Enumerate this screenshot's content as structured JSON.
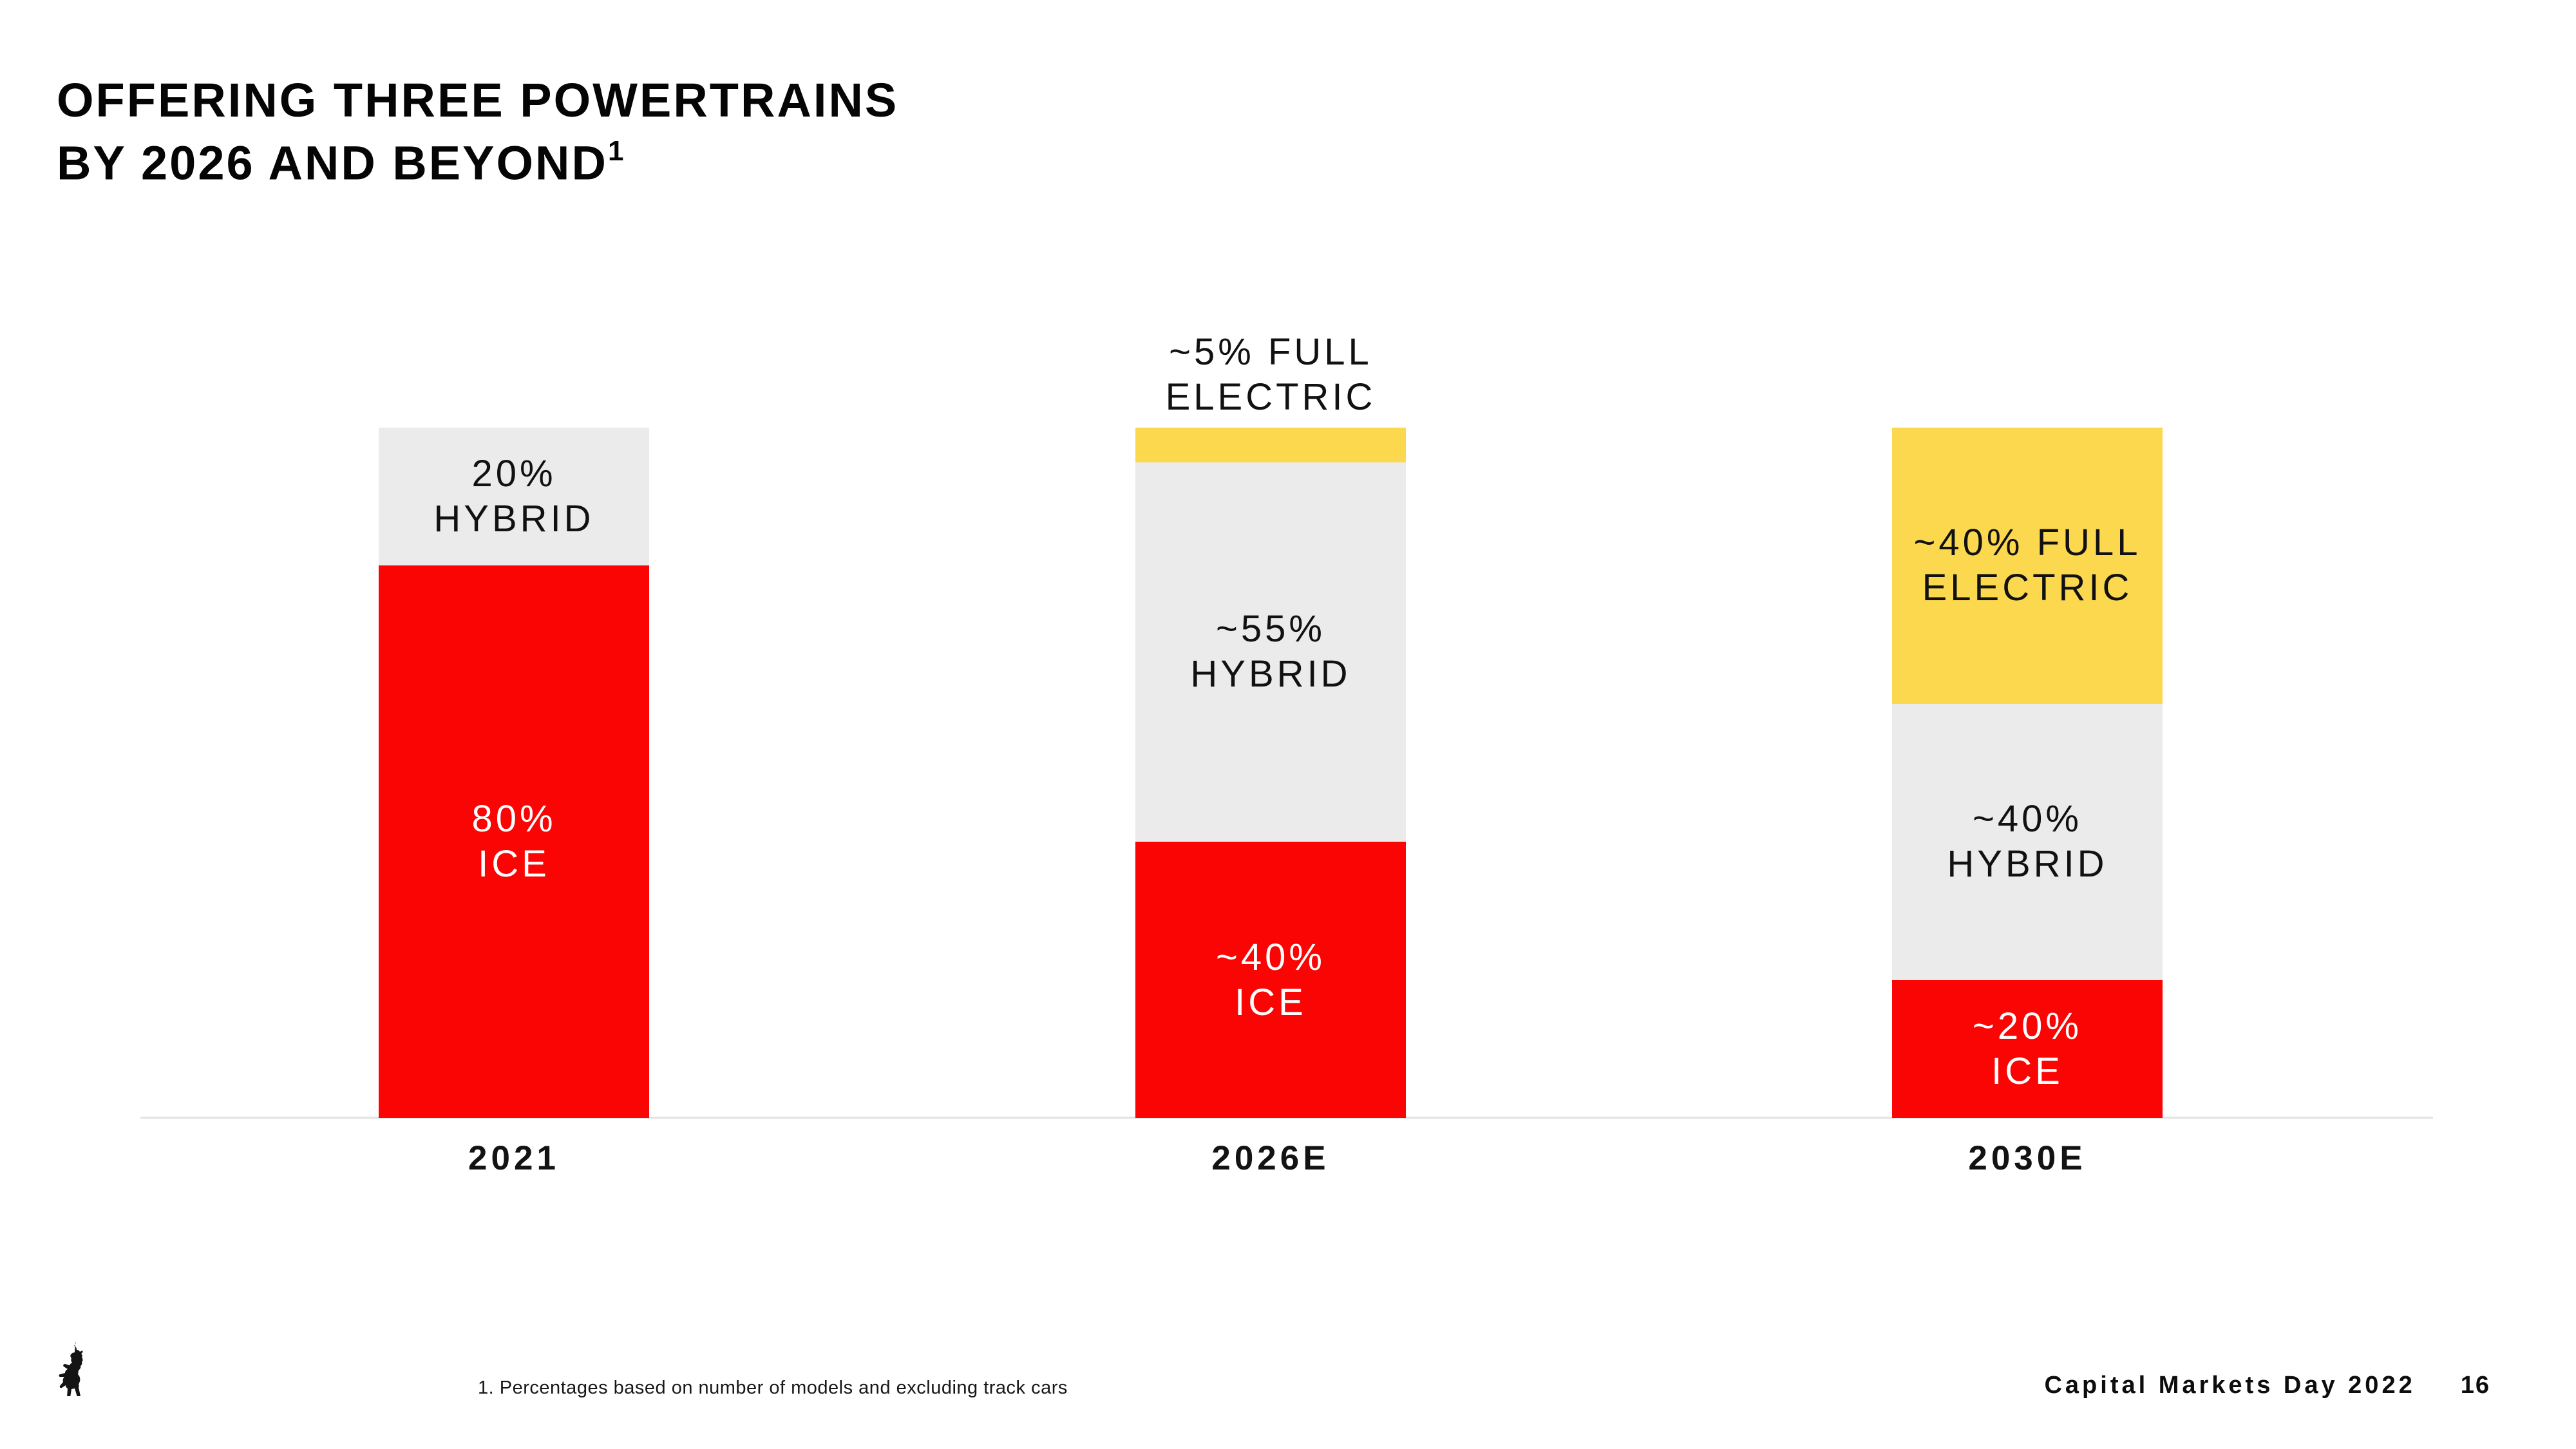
{
  "title": {
    "line1": "OFFERING THREE POWERTRAINS",
    "line2": "BY 2026 AND BEYOND",
    "footnote_marker": "1"
  },
  "colors": {
    "background": "#FFFFFF",
    "ice_red": "#FA0404",
    "hybrid_gray": "#EBEBEB",
    "full_electric_yellow": "#FCD84F",
    "axis_line": "#E2E2E2",
    "text_black": "#111111",
    "text_white": "#FFFFFF"
  },
  "chart_data": {
    "type": "bar",
    "stacked": true,
    "title": "OFFERING THREE POWERTRAINS BY 2026 AND BEYOND",
    "unit": "% of models",
    "categories": [
      "2021",
      "2026E",
      "2030E"
    ],
    "ylim": [
      0,
      100
    ],
    "grid": false,
    "legend_position": "none (values labeled on segments)",
    "series": [
      {
        "name": "FULL ELECTRIC",
        "color": "#FCD84F",
        "values": [
          0,
          5,
          40
        ],
        "value_labels": [
          null,
          "~5%",
          "~40%"
        ]
      },
      {
        "name": "HYBRID",
        "color": "#EBEBEB",
        "values": [
          20,
          55,
          40
        ],
        "value_labels": [
          "20%",
          "~55%",
          "~40%"
        ]
      },
      {
        "name": "ICE",
        "color": "#FA0404",
        "values": [
          80,
          40,
          20
        ],
        "value_labels": [
          "80%",
          "~40%",
          "~20%"
        ]
      }
    ],
    "bars": [
      {
        "category": "2021",
        "segments": [
          {
            "name": "hybrid",
            "pct": 20,
            "color": "#EBEBEB",
            "text_color": "#111111",
            "label": "20%\nHYBRID",
            "label_pos": "inside"
          },
          {
            "name": "ice",
            "pct": 80,
            "color": "#FA0404",
            "text_color": "#FFFFFF",
            "label": "80%\nICE",
            "label_pos": "inside"
          }
        ]
      },
      {
        "category": "2026E",
        "segments": [
          {
            "name": "full-electric",
            "pct": 5,
            "color": "#FCD84F",
            "text_color": "#111111",
            "label": "~5% FULL\nELECTRIC",
            "label_pos": "above"
          },
          {
            "name": "hybrid",
            "pct": 55,
            "color": "#EBEBEB",
            "text_color": "#111111",
            "label": "~55%\nHYBRID",
            "label_pos": "inside"
          },
          {
            "name": "ice",
            "pct": 40,
            "color": "#FA0404",
            "text_color": "#FFFFFF",
            "label": "~40%\nICE",
            "label_pos": "inside"
          }
        ]
      },
      {
        "category": "2030E",
        "segments": [
          {
            "name": "full-electric",
            "pct": 40,
            "color": "#FCD84F",
            "text_color": "#111111",
            "label": "~40% FULL\nELECTRIC",
            "label_pos": "inside"
          },
          {
            "name": "hybrid",
            "pct": 40,
            "color": "#EBEBEB",
            "text_color": "#111111",
            "label": "~40%\nHYBRID",
            "label_pos": "inside"
          },
          {
            "name": "ice",
            "pct": 20,
            "color": "#FA0404",
            "text_color": "#FFFFFF",
            "label": "~20%\nICE",
            "label_pos": "inside"
          }
        ]
      }
    ]
  },
  "footnote": "1. Percentages based on number of models and excluding track cars",
  "footer": {
    "event": "Capital Markets Day 2022",
    "page": "16"
  },
  "icons": {
    "logo": "ferrari-prancing-horse"
  }
}
